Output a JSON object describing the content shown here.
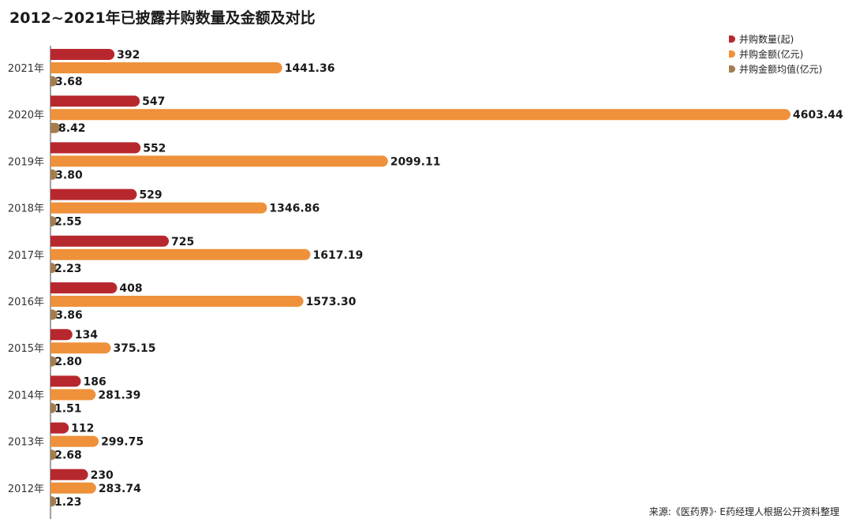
{
  "title": "2012~2021年已披露并购数量及金额及对比",
  "source": "来源:《医药界》· E药经理人根据公开资料整理",
  "colors": {
    "count": "#b7282e",
    "amount": "#ee913a",
    "avg": "#a47d4f",
    "axis": "#444444",
    "text": "#1a1a1a"
  },
  "chart_data": {
    "type": "bar",
    "orientation": "horizontal",
    "categories": [
      "2021年",
      "2020年",
      "2019年",
      "2018年",
      "2017年",
      "2016年",
      "2015年",
      "2014年",
      "2013年",
      "2012年"
    ],
    "series": [
      {
        "name": "并购数量(起)",
        "values": [
          392,
          547,
          552,
          529,
          725,
          408,
          134,
          186,
          112,
          230
        ],
        "labels": [
          "392",
          "547",
          "552",
          "529",
          "725",
          "408",
          "134",
          "186",
          "112",
          "230"
        ]
      },
      {
        "name": "并购金额(亿元)",
        "values": [
          1441.36,
          4603.44,
          2099.11,
          1346.86,
          1617.19,
          1573.3,
          375.15,
          281.39,
          299.75,
          283.74
        ],
        "labels": [
          "1441.36",
          "4603.44",
          "2099.11",
          "1346.86",
          "1617.19",
          "1573.30",
          "375.15",
          "281.39",
          "299.75",
          "283.74"
        ]
      },
      {
        "name": "并购金额均值(亿元)",
        "values": [
          3.68,
          8.42,
          3.8,
          2.55,
          2.23,
          3.86,
          2.8,
          1.51,
          2.68,
          1.23
        ],
        "labels": [
          "3.68",
          "8.42",
          "3.80",
          "2.55",
          "2.23",
          "3.86",
          "2.80",
          "1.51",
          "2.68",
          "1.23"
        ]
      }
    ],
    "legend": "top-right",
    "grid": false
  }
}
